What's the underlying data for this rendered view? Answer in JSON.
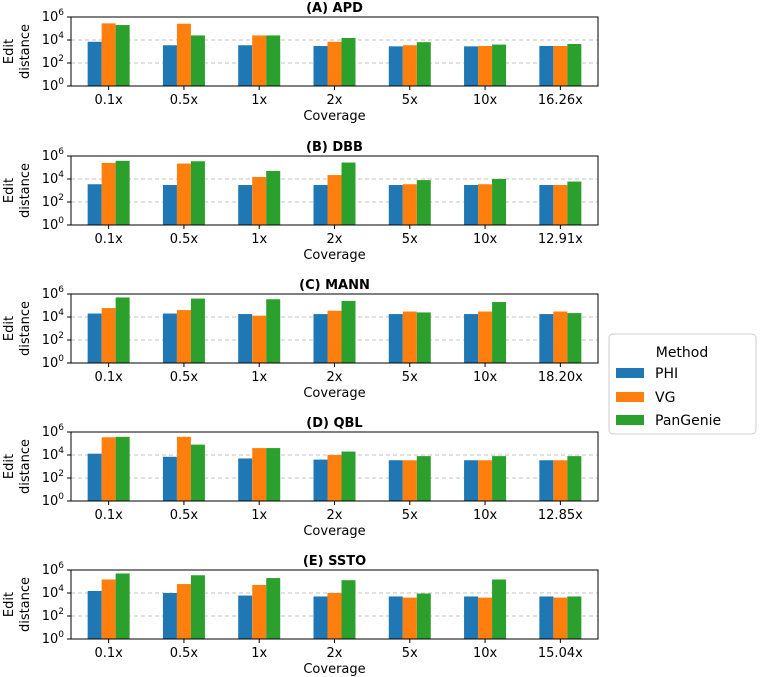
{
  "legend": {
    "title": "Method",
    "entries": [
      {
        "name": "PHI",
        "color": "#1f77b4"
      },
      {
        "name": "VG",
        "color": "#ff7f0e"
      },
      {
        "name": "PanGenie",
        "color": "#2ca02c"
      }
    ]
  },
  "chart_data": [
    {
      "type": "bar",
      "title": "(A) APD",
      "xlabel": "Coverage",
      "ylabel": [
        "Edit",
        "distance"
      ],
      "yscale": "log",
      "ylim": [
        1,
        1000000
      ],
      "ytick_labels": [
        "10^0",
        "10^2",
        "10^4",
        "10^6"
      ],
      "categories": [
        "0.1x",
        "0.5x",
        "1x",
        "2x",
        "5x",
        "10x",
        "16.26x"
      ],
      "series": [
        {
          "name": "PHI",
          "values": [
            7000,
            3500,
            3500,
            3000,
            2800,
            2800,
            3000
          ]
        },
        {
          "name": "VG",
          "values": [
            280000,
            260000,
            25000,
            7000,
            3500,
            3000,
            3000
          ]
        },
        {
          "name": "PanGenie",
          "values": [
            200000,
            25000,
            25000,
            15000,
            6500,
            4000,
            4500
          ]
        }
      ]
    },
    {
      "type": "bar",
      "title": "(B) DBB",
      "xlabel": "Coverage",
      "ylabel": [
        "Edit",
        "distance"
      ],
      "yscale": "log",
      "ylim": [
        1,
        1000000
      ],
      "ytick_labels": [
        "10^0",
        "10^2",
        "10^4",
        "10^6"
      ],
      "categories": [
        "0.1x",
        "0.5x",
        "1x",
        "2x",
        "5x",
        "10x",
        "12.91x"
      ],
      "series": [
        {
          "name": "PHI",
          "values": [
            3500,
            3000,
            3000,
            3000,
            3000,
            3000,
            3000
          ]
        },
        {
          "name": "VG",
          "values": [
            250000,
            220000,
            15000,
            22000,
            3500,
            3500,
            3000
          ]
        },
        {
          "name": "PanGenie",
          "values": [
            380000,
            350000,
            50000,
            270000,
            8000,
            10000,
            6000
          ]
        }
      ]
    },
    {
      "type": "bar",
      "title": "(C) MANN",
      "xlabel": "Coverage",
      "ylabel": [
        "Edit",
        "distance"
      ],
      "yscale": "log",
      "ylim": [
        1,
        1000000
      ],
      "ytick_labels": [
        "10^0",
        "10^2",
        "10^4",
        "10^6"
      ],
      "categories": [
        "0.1x",
        "0.5x",
        "1x",
        "2x",
        "5x",
        "10x",
        "18.20x"
      ],
      "series": [
        {
          "name": "PHI",
          "values": [
            20000,
            20000,
            18000,
            18000,
            18000,
            18000,
            18000
          ]
        },
        {
          "name": "VG",
          "values": [
            60000,
            40000,
            13000,
            35000,
            30000,
            30000,
            30000
          ]
        },
        {
          "name": "PanGenie",
          "values": [
            500000,
            400000,
            350000,
            250000,
            25000,
            200000,
            22000
          ]
        }
      ]
    },
    {
      "type": "bar",
      "title": "(D) QBL",
      "xlabel": "Coverage",
      "ylabel": [
        "Edit",
        "distance"
      ],
      "yscale": "log",
      "ylim": [
        1,
        1000000
      ],
      "ytick_labels": [
        "10^0",
        "10^2",
        "10^4",
        "10^6"
      ],
      "categories": [
        "0.1x",
        "0.5x",
        "1x",
        "2x",
        "5x",
        "10x",
        "12.85x"
      ],
      "series": [
        {
          "name": "PHI",
          "values": [
            13000,
            7000,
            5000,
            4000,
            3500,
            3500,
            3500
          ]
        },
        {
          "name": "VG",
          "values": [
            350000,
            380000,
            40000,
            10000,
            3500,
            3500,
            3500
          ]
        },
        {
          "name": "PanGenie",
          "values": [
            380000,
            80000,
            40000,
            20000,
            8000,
            8000,
            8000
          ]
        }
      ]
    },
    {
      "type": "bar",
      "title": "(E) SSTO",
      "xlabel": "Coverage",
      "ylabel": [
        "Edit",
        "distance"
      ],
      "yscale": "log",
      "ylim": [
        1,
        1000000
      ],
      "ytick_labels": [
        "10^0",
        "10^2",
        "10^4",
        "10^6"
      ],
      "categories": [
        "0.1x",
        "0.5x",
        "1x",
        "2x",
        "5x",
        "10x",
        "15.04x"
      ],
      "series": [
        {
          "name": "PHI",
          "values": [
            15000,
            10000,
            6000,
            5000,
            5000,
            5000,
            5000
          ]
        },
        {
          "name": "VG",
          "values": [
            150000,
            60000,
            50000,
            10000,
            4000,
            4000,
            4000
          ]
        },
        {
          "name": "PanGenie",
          "values": [
            500000,
            350000,
            200000,
            130000,
            9000,
            150000,
            5000
          ]
        }
      ]
    }
  ]
}
